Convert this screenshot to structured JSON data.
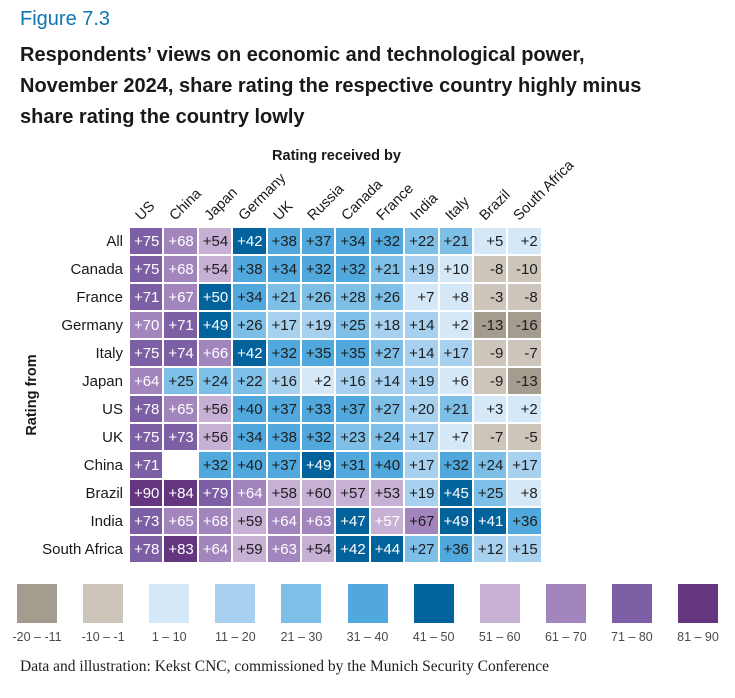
{
  "header": {
    "figure_label": "Figure 7.3",
    "title_lines": [
      "Respondents’ views on economic and technological power,",
      "November 2024, share rating the respective country highly minus",
      "share rating the country lowly"
    ]
  },
  "footer": {
    "credit": "Data and illustration: Kekst CNC, commissioned by the Munich Security Conference"
  },
  "chart_data": {
    "type": "heatmap",
    "title": "Respondents’ views on economic and technological power, November 2024, share rating the respective country highly minus share rating the country lowly",
    "x_axis_label": "Rating received by",
    "y_axis_label": "Rating from",
    "columns": [
      "US",
      "China",
      "Japan",
      "Germany",
      "UK",
      "Russia",
      "Canada",
      "France",
      "India",
      "Italy",
      "Brazil",
      "South Africa"
    ],
    "rows": [
      {
        "name": "All",
        "values": [
          75,
          68,
          54,
          42,
          38,
          37,
          34,
          32,
          22,
          21,
          5,
          2
        ]
      },
      {
        "name": "Canada",
        "values": [
          75,
          68,
          54,
          38,
          34,
          32,
          32,
          21,
          19,
          10,
          -8,
          -10
        ]
      },
      {
        "name": "France",
        "values": [
          71,
          67,
          50,
          34,
          21,
          26,
          28,
          26,
          7,
          8,
          -3,
          -8
        ]
      },
      {
        "name": "Germany",
        "values": [
          70,
          71,
          49,
          26,
          17,
          19,
          25,
          18,
          14,
          2,
          -13,
          -16
        ]
      },
      {
        "name": "Italy",
        "values": [
          75,
          74,
          66,
          42,
          32,
          35,
          35,
          27,
          14,
          17,
          -9,
          -7
        ]
      },
      {
        "name": "Japan",
        "values": [
          64,
          25,
          24,
          22,
          16,
          2,
          16,
          14,
          19,
          6,
          -9,
          -13
        ]
      },
      {
        "name": "US",
        "values": [
          78,
          65,
          56,
          40,
          37,
          33,
          37,
          27,
          20,
          21,
          3,
          2
        ]
      },
      {
        "name": "UK",
        "values": [
          75,
          73,
          56,
          34,
          38,
          32,
          23,
          24,
          17,
          7,
          -7,
          -5
        ]
      },
      {
        "name": "China",
        "values": [
          71,
          null,
          32,
          40,
          37,
          49,
          31,
          40,
          17,
          32,
          24,
          17
        ]
      },
      {
        "name": "Brazil",
        "values": [
          90,
          84,
          79,
          64,
          58,
          60,
          57,
          53,
          19,
          45,
          25,
          8
        ]
      },
      {
        "name": "India",
        "values": [
          73,
          65,
          68,
          59,
          64,
          63,
          47,
          57,
          67,
          49,
          41,
          36
        ]
      },
      {
        "name": "South Africa",
        "values": [
          78,
          83,
          64,
          59,
          63,
          54,
          42,
          44,
          27,
          36,
          12,
          15
        ]
      }
    ],
    "value_format": "signed",
    "legend_position": "bottom",
    "buckets": [
      {
        "label": "-20 – -11",
        "min": -20,
        "max": -11,
        "color": "#a59c90",
        "text": "dark"
      },
      {
        "label": "-10 – -1",
        "min": -10,
        "max": -1,
        "color": "#cdc5ba",
        "text": "dark"
      },
      {
        "label": "1 – 10",
        "min": 1,
        "max": 10,
        "color": "#d4e8f7",
        "text": "dark"
      },
      {
        "label": "11 – 20",
        "min": 11,
        "max": 20,
        "color": "#a7d1ef",
        "text": "dark"
      },
      {
        "label": "21 – 30",
        "min": 21,
        "max": 30,
        "color": "#7ebfe8",
        "text": "dark"
      },
      {
        "label": "31 – 40",
        "min": 31,
        "max": 40,
        "color": "#51a8dc",
        "text": "dark"
      },
      {
        "label": "41 – 50",
        "min": 41,
        "max": 50,
        "color": "#02639c",
        "text": "light"
      },
      {
        "label": "51 – 60",
        "min": 51,
        "max": 60,
        "color": "#c6b0d3",
        "text": "dark"
      },
      {
        "label": "61 – 70",
        "min": 61,
        "max": 70,
        "color": "#a285bc",
        "text": "light"
      },
      {
        "label": "71 – 80",
        "min": 71,
        "max": 80,
        "color": "#7c5fa4",
        "text": "light"
      },
      {
        "label": "81 – 90",
        "min": 81,
        "max": 90,
        "color": "#643680",
        "text": "light"
      }
    ],
    "cell_text_overrides": [
      {
        "row": "India",
        "col": "France",
        "text": "light"
      },
      {
        "row": "India",
        "col": "India",
        "text": "dark"
      }
    ]
  }
}
